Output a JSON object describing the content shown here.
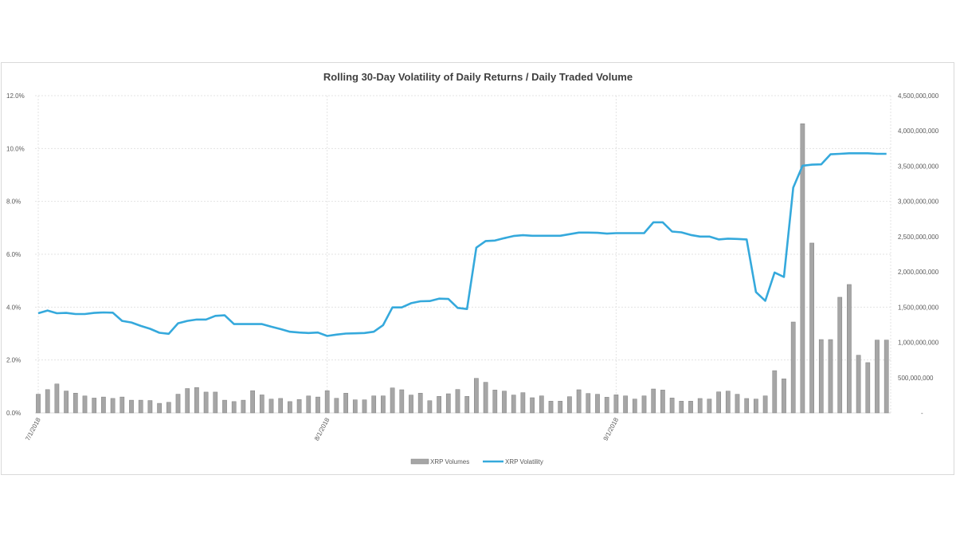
{
  "chart_data": {
    "type": "bar+line",
    "title": "Rolling 30-Day Volatility of Daily Returns / Daily Traded Volume",
    "legend_position": "bottom",
    "grid": true,
    "x_tick_labels": [
      "7/1/2018",
      "8/1/2018",
      "9/1/2018"
    ],
    "y_left": {
      "ticks": [
        "0.0%",
        "2.0%",
        "4.0%",
        "6.0%",
        "8.0%",
        "10.0%",
        "12.0%"
      ],
      "range": [
        0,
        12
      ],
      "unit": "%"
    },
    "y_right": {
      "ticks": [
        "-",
        "500,000,000",
        "1,000,000,000",
        "1,500,000,000",
        "2,000,000,000",
        "2,500,000,000",
        "3,000,000,000",
        "3,500,000,000",
        "4,000,000,000",
        "4,500,000,000"
      ],
      "range": [
        0,
        4500000000
      ]
    },
    "colors": {
      "volumes": "#a6a6a6",
      "volumes_border": "#7f7f7f",
      "volatility": "#35a9dc"
    },
    "dates": [
      "7/1/2018",
      "7/2/2018",
      "7/3/2018",
      "7/4/2018",
      "7/5/2018",
      "7/6/2018",
      "7/7/2018",
      "7/8/2018",
      "7/9/2018",
      "7/10/2018",
      "7/11/2018",
      "7/12/2018",
      "7/13/2018",
      "7/14/2018",
      "7/15/2018",
      "7/16/2018",
      "7/17/2018",
      "7/18/2018",
      "7/19/2018",
      "7/20/2018",
      "7/21/2018",
      "7/22/2018",
      "7/23/2018",
      "7/24/2018",
      "7/25/2018",
      "7/26/2018",
      "7/27/2018",
      "7/28/2018",
      "7/29/2018",
      "7/30/2018",
      "7/31/2018",
      "8/1/2018",
      "8/2/2018",
      "8/3/2018",
      "8/4/2018",
      "8/5/2018",
      "8/6/2018",
      "8/7/2018",
      "8/8/2018",
      "8/9/2018",
      "8/10/2018",
      "8/11/2018",
      "8/12/2018",
      "8/13/2018",
      "8/14/2018",
      "8/15/2018",
      "8/16/2018",
      "8/17/2018",
      "8/18/2018",
      "8/19/2018",
      "8/20/2018",
      "8/21/2018",
      "8/22/2018",
      "8/23/2018",
      "8/24/2018",
      "8/25/2018",
      "8/26/2018",
      "8/27/2018",
      "8/28/2018",
      "8/29/2018",
      "8/30/2018",
      "8/31/2018",
      "9/1/2018",
      "9/2/2018",
      "9/3/2018",
      "9/4/2018",
      "9/5/2018",
      "9/6/2018",
      "9/7/2018",
      "9/8/2018",
      "9/9/2018",
      "9/10/2018",
      "9/11/2018",
      "9/12/2018",
      "9/13/2018",
      "9/14/2018",
      "9/15/2018",
      "9/16/2018",
      "9/17/2018",
      "9/18/2018",
      "9/19/2018",
      "9/20/2018",
      "9/21/2018",
      "9/22/2018",
      "9/23/2018",
      "9/24/2018",
      "9/25/2018",
      "9/26/2018",
      "9/27/2018",
      "9/28/2018",
      "9/29/2018",
      "9/30/2018"
    ],
    "series": [
      {
        "name": "XRP Volumes",
        "type": "bar",
        "axis": "right",
        "values": [
          265000000,
          330000000,
          410000000,
          310000000,
          280000000,
          240000000,
          210000000,
          225000000,
          205000000,
          225000000,
          180000000,
          180000000,
          175000000,
          135000000,
          150000000,
          265000000,
          345000000,
          360000000,
          295000000,
          295000000,
          180000000,
          160000000,
          180000000,
          315000000,
          255000000,
          195000000,
          205000000,
          160000000,
          190000000,
          240000000,
          225000000,
          315000000,
          207000000,
          279000000,
          185000000,
          185000000,
          241000000,
          241000000,
          354000000,
          328000000,
          253000000,
          279000000,
          173000000,
          234000000,
          271000000,
          332000000,
          234000000,
          490000000,
          434000000,
          324000000,
          309000000,
          253000000,
          287000000,
          215000000,
          241000000,
          166000000,
          166000000,
          230000000,
          328000000,
          275000000,
          264000000,
          222000000,
          256000000,
          241000000,
          196000000,
          241000000,
          339000000,
          324000000,
          211000000,
          166000000,
          166000000,
          204000000,
          196000000,
          298000000,
          309000000,
          264000000,
          204000000,
          196000000,
          241000000,
          599000000,
          483000000,
          1289000000,
          4102000000,
          2409000000,
          1040000000,
          1040000000,
          1640000000,
          1821000000,
          818000000,
          713000000,
          1033000000,
          1033000000
        ]
      },
      {
        "name": "XRP Volatility",
        "type": "line",
        "axis": "left",
        "values": [
          3.77,
          3.87,
          3.77,
          3.78,
          3.74,
          3.74,
          3.78,
          3.8,
          3.79,
          3.48,
          3.42,
          3.29,
          3.18,
          3.03,
          2.99,
          3.39,
          3.48,
          3.53,
          3.53,
          3.67,
          3.69,
          3.36,
          3.36,
          3.36,
          3.36,
          3.26,
          3.17,
          3.07,
          3.04,
          3.02,
          3.04,
          2.91,
          2.96,
          3.0,
          3.01,
          3.02,
          3.07,
          3.32,
          3.99,
          3.99,
          4.15,
          4.22,
          4.23,
          4.32,
          4.31,
          3.97,
          3.93,
          6.25,
          6.5,
          6.52,
          6.61,
          6.69,
          6.72,
          6.7,
          6.7,
          6.7,
          6.7,
          6.76,
          6.82,
          6.82,
          6.81,
          6.78,
          6.8,
          6.8,
          6.8,
          6.8,
          7.21,
          7.21,
          6.86,
          6.83,
          6.73,
          6.67,
          6.67,
          6.56,
          6.59,
          6.58,
          6.56,
          4.57,
          4.24,
          5.31,
          5.14,
          8.52,
          9.35,
          9.39,
          9.4,
          9.78,
          9.8,
          9.82,
          9.82,
          9.82,
          9.8,
          9.8
        ]
      }
    ]
  }
}
